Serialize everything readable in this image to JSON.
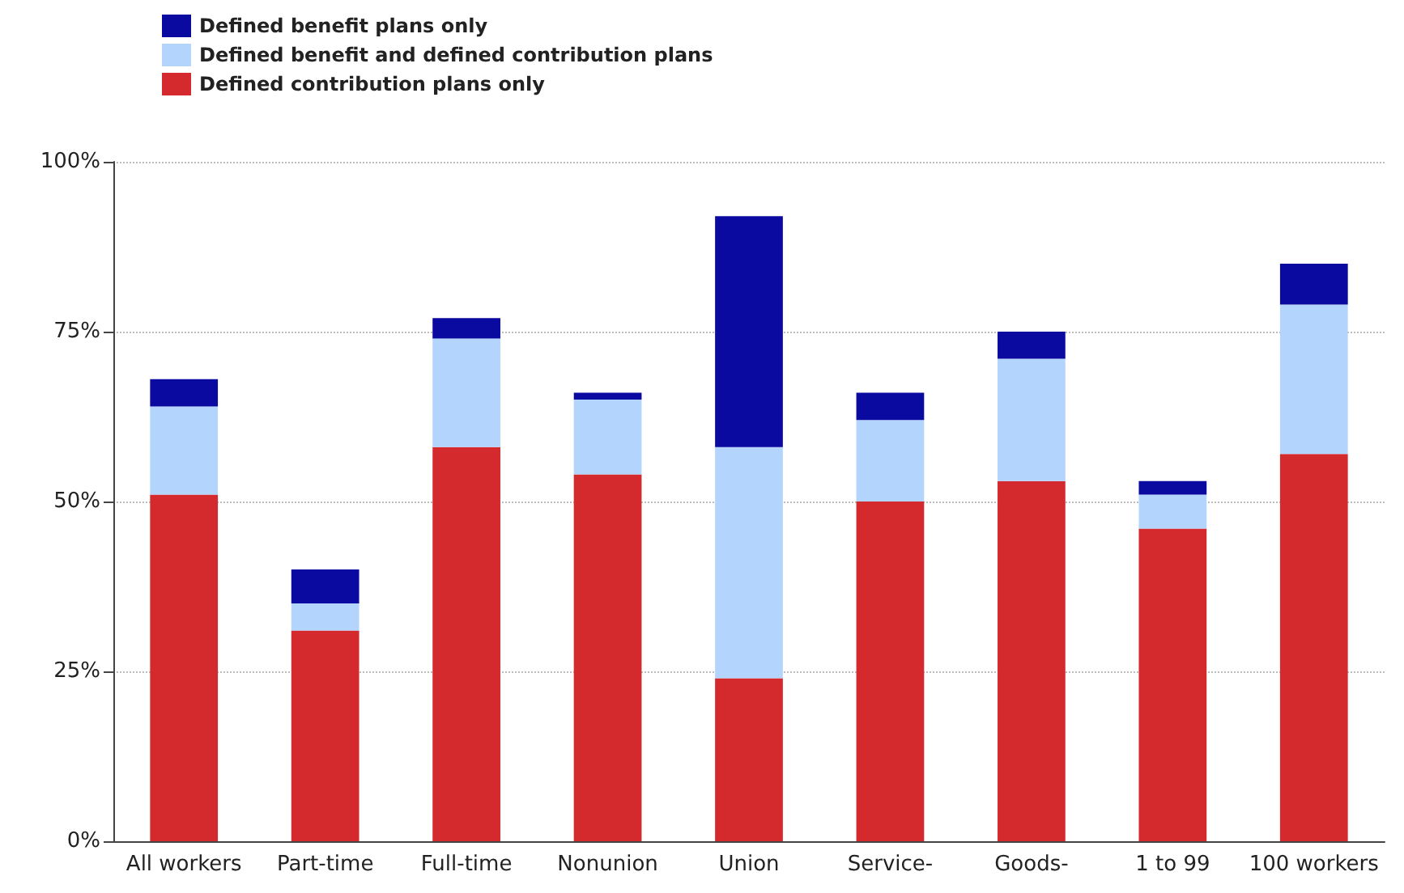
{
  "chart_data": {
    "type": "bar",
    "stacked": true,
    "categories": [
      "All workers",
      "Part-time",
      "Full-time",
      "Nonunion",
      "Union",
      "Service-",
      "Goods-",
      "1 to 99",
      "100 workers"
    ],
    "series": [
      {
        "name": "Defined contribution plans only",
        "color": "#d42a2e",
        "values": [
          51,
          31,
          58,
          54,
          24,
          50,
          53,
          46,
          57
        ]
      },
      {
        "name": "Defined benefit and defined contribution plans",
        "color": "#b3d4fc",
        "values": [
          13,
          4,
          16,
          11,
          34,
          12,
          18,
          5,
          22
        ]
      },
      {
        "name": "Defined benefit plans only",
        "color": "#0a0aa0",
        "values": [
          4,
          5,
          3,
          1,
          34,
          4,
          4,
          2,
          6
        ]
      }
    ],
    "ylim": [
      0,
      100
    ],
    "yticks": [
      {
        "value": 0,
        "label": "0%"
      },
      {
        "value": 25,
        "label": "25%"
      },
      {
        "value": 50,
        "label": "50%"
      },
      {
        "value": 75,
        "label": "75%"
      },
      {
        "value": 100,
        "label": "100%"
      }
    ],
    "grid": "y",
    "legend": "top left"
  }
}
